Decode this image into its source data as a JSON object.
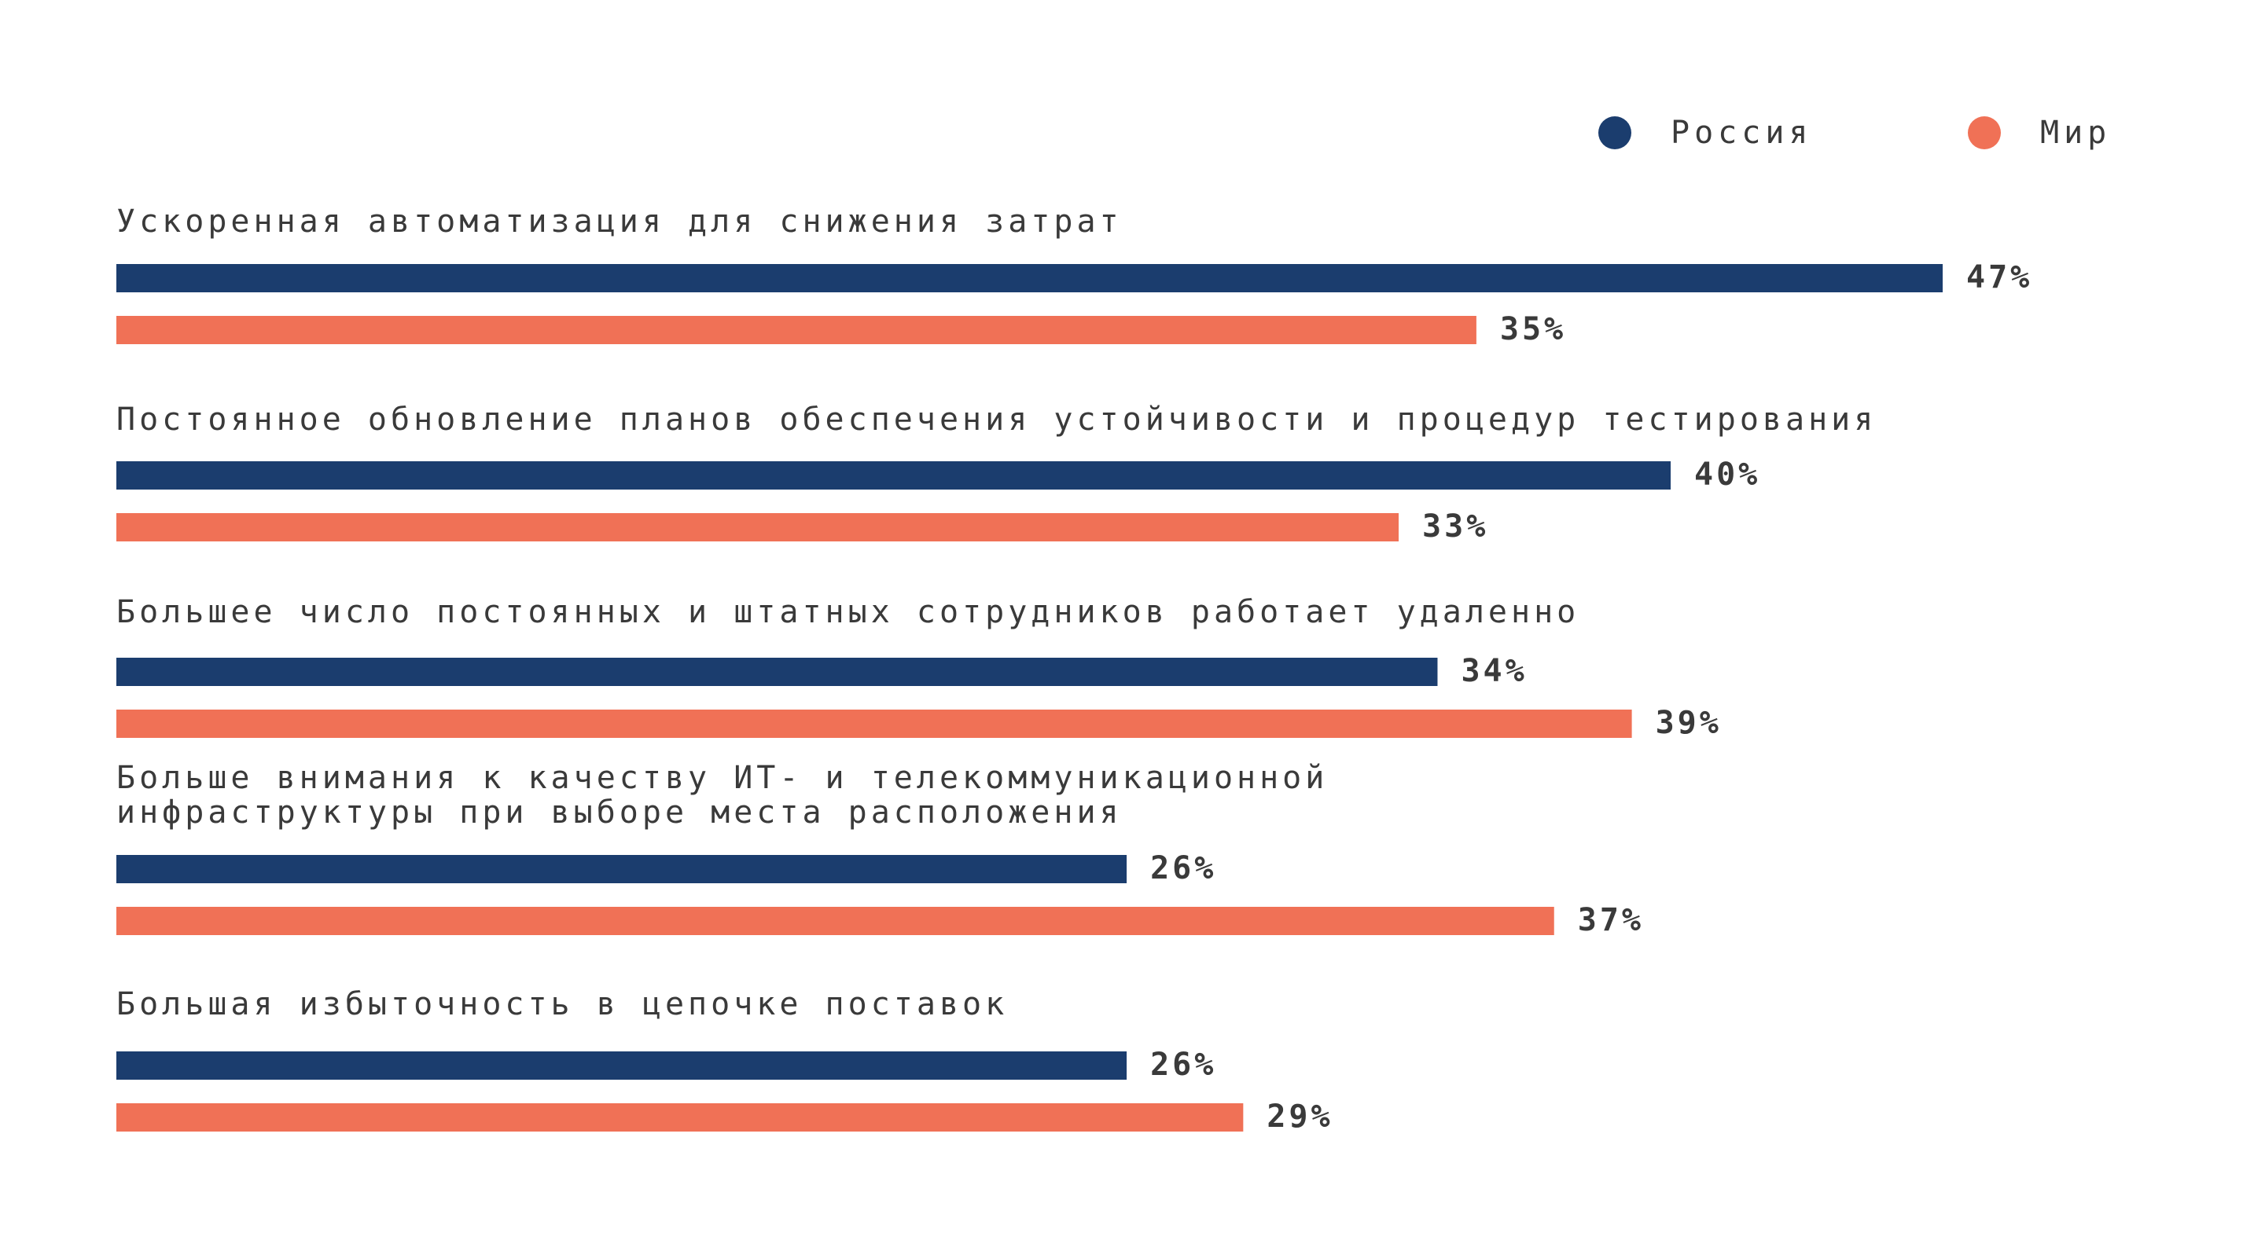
{
  "chart_data": {
    "type": "bar",
    "orientation": "horizontal",
    "categories": [
      "Ускоренная автоматизация для снижения затрат",
      "Постоянное обновление планов обеспечения устойчивости и процедур тестирования",
      "Большее число постоянных и штатных сотрудников работает удаленно",
      "Больше внимания к качеству ИТ- и телекоммуникационной\nинфраструктуры при выборе места расположения",
      "Большая избыточность в цепочке поставок"
    ],
    "series": [
      {
        "name": "Россия",
        "color": "#1b3d6e",
        "values": [
          47,
          40,
          34,
          26,
          26
        ],
        "labels": [
          "47%",
          "40%",
          "34%",
          "26%",
          "26%"
        ]
      },
      {
        "name": "Мир",
        "color": "#f07156",
        "values": [
          35,
          33,
          39,
          37,
          29
        ],
        "labels": [
          "35%",
          "33%",
          "39%",
          "37%",
          "29%"
        ]
      }
    ],
    "legend": "top-right",
    "grid": false,
    "xlim": [
      0,
      50
    ],
    "value_suffix": "%"
  }
}
